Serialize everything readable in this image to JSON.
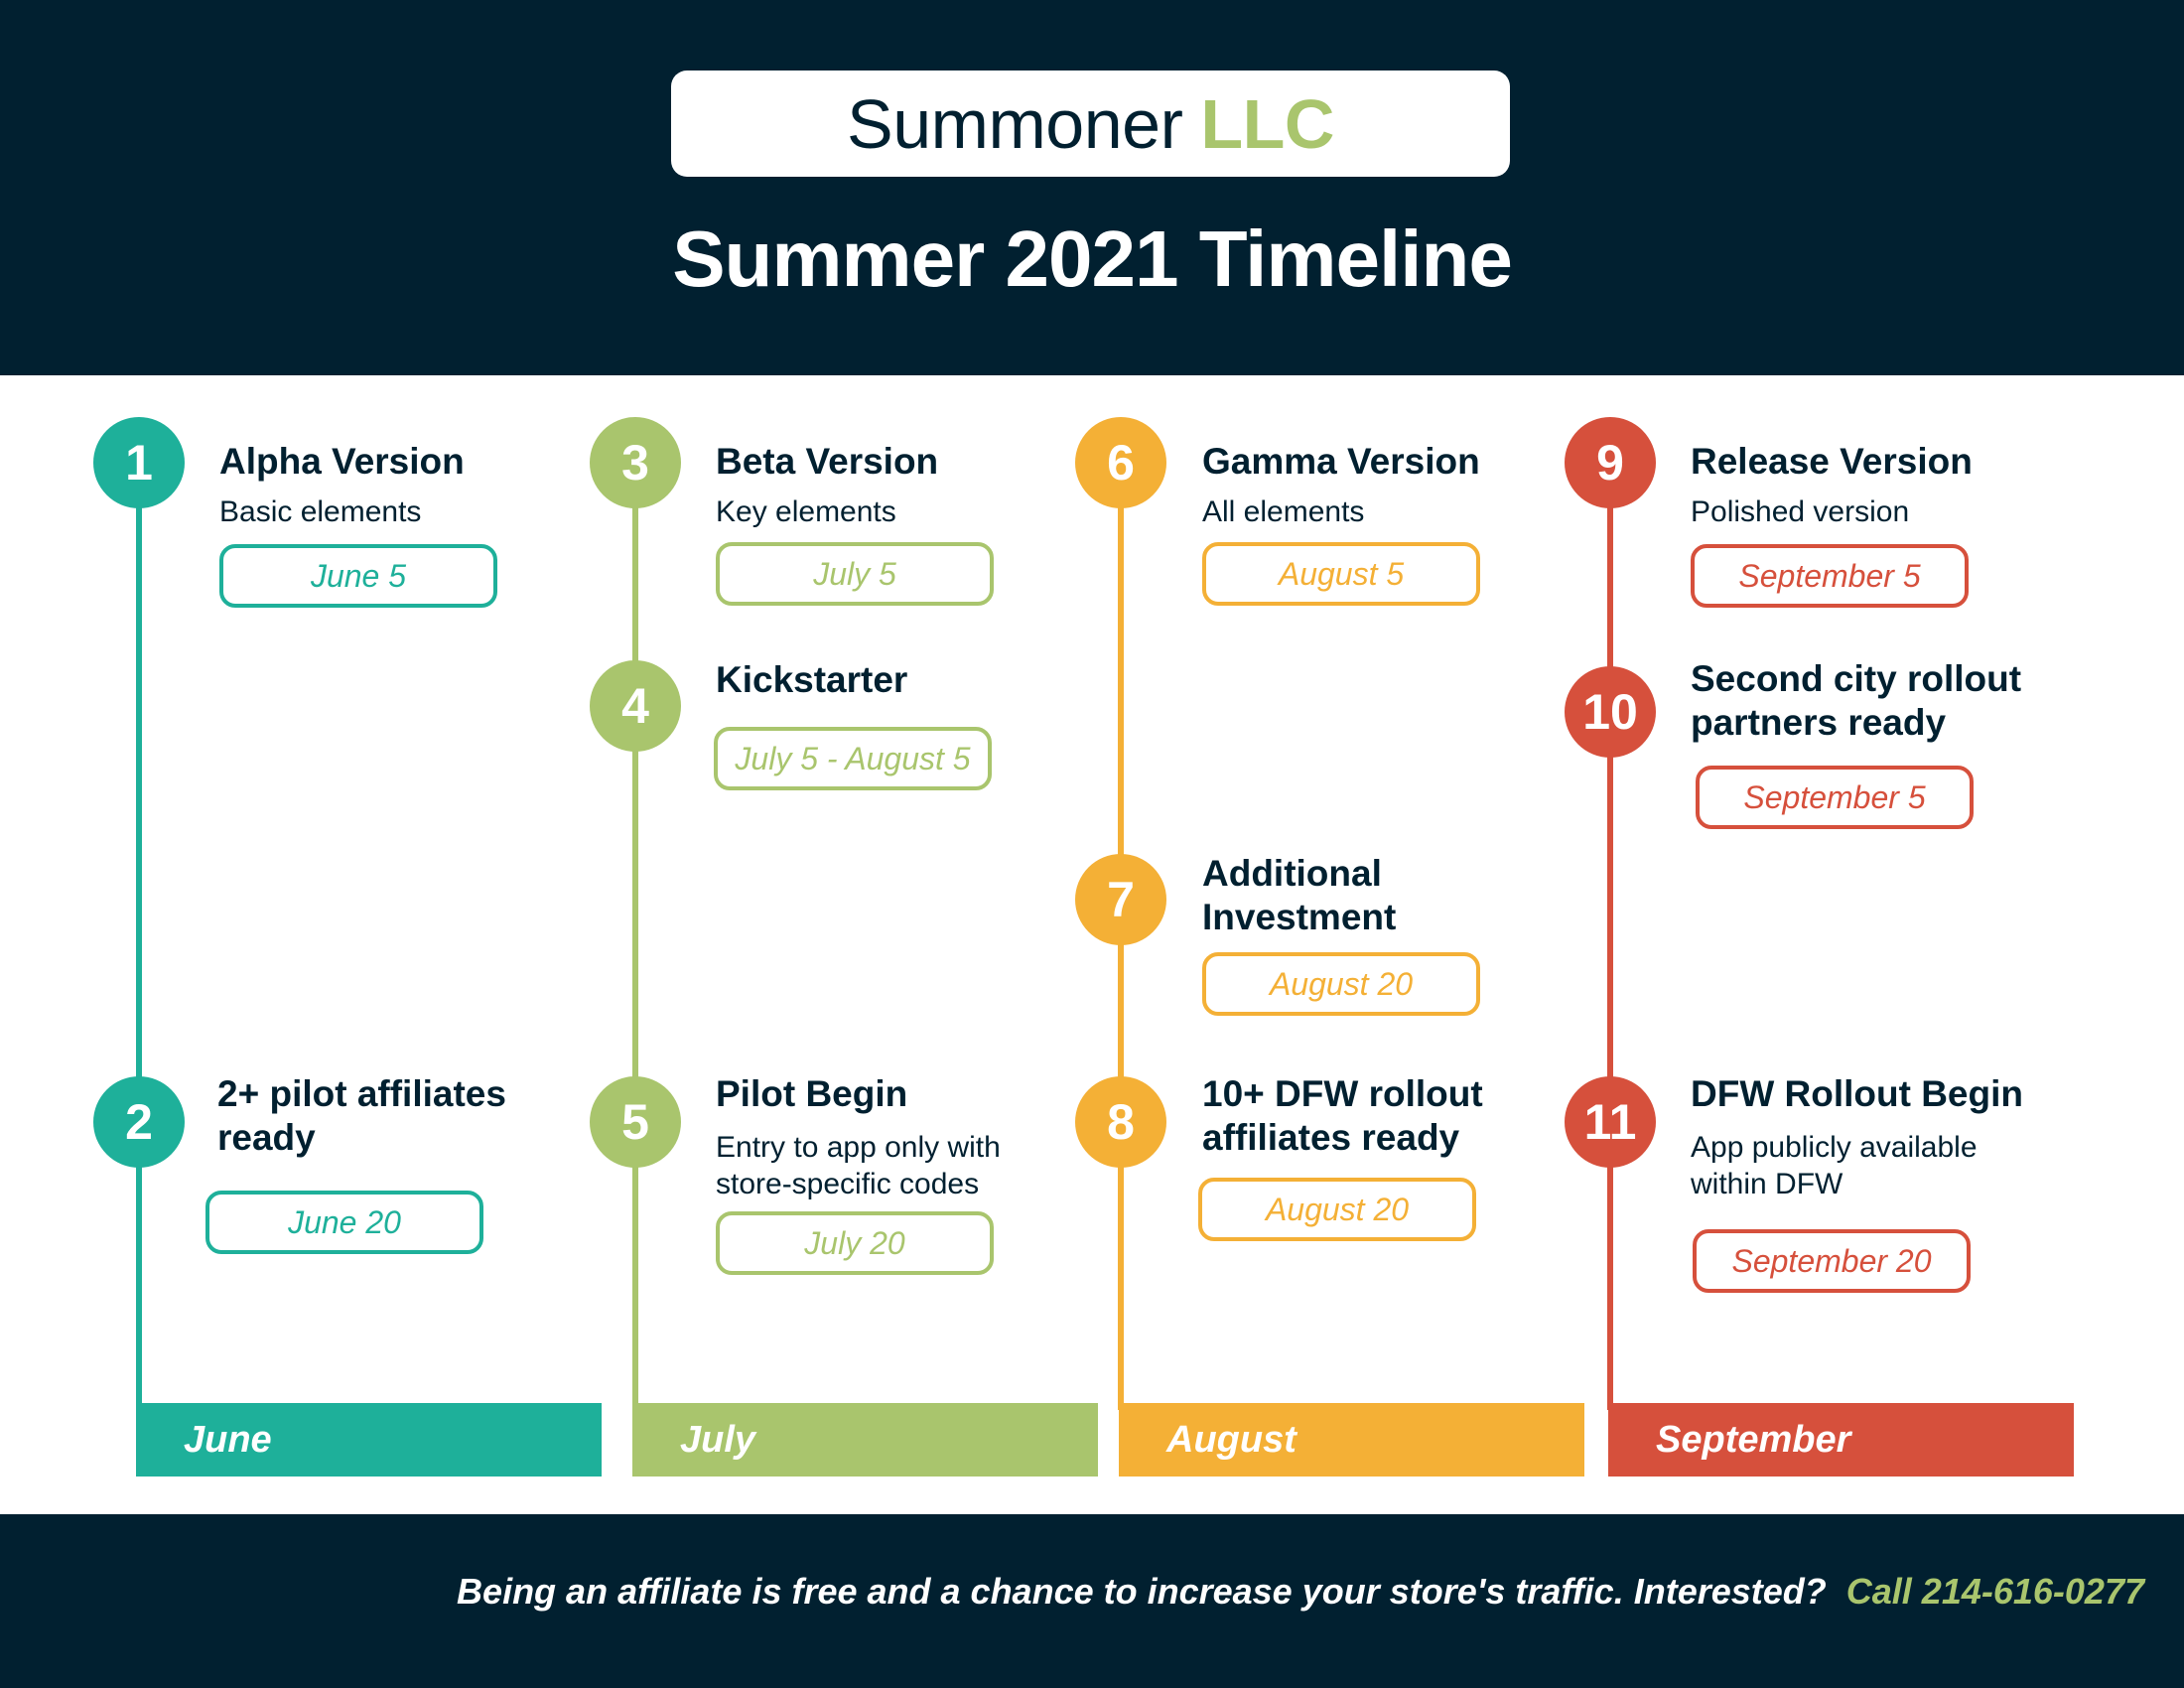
{
  "header": {
    "logo_name": "Summoner",
    "logo_accent": "LLC",
    "title": "Summer 2021 Timeline"
  },
  "colors": {
    "navy": "#012030",
    "june": "#1eb09a",
    "july": "#a9c56d",
    "august": "#f4b036",
    "september": "#d6503c"
  },
  "months": [
    "June",
    "July",
    "August",
    "September"
  ],
  "milestones": [
    {
      "num": "1",
      "title": "Alpha Version",
      "desc": "Basic elements",
      "date": "June 5"
    },
    {
      "num": "2",
      "title": "2+ pilot affiliates ready",
      "date": "June 20"
    },
    {
      "num": "3",
      "title": "Beta Version",
      "desc": "Key elements",
      "date": "July 5"
    },
    {
      "num": "4",
      "title": "Kickstarter",
      "date": "July 5 - August 5"
    },
    {
      "num": "5",
      "title": "Pilot Begin",
      "desc": "Entry to app only with store-specific codes",
      "date": "July 20"
    },
    {
      "num": "6",
      "title": "Gamma Version",
      "desc": "All elements",
      "date": "August 5"
    },
    {
      "num": "7",
      "title": "Additional Investment",
      "date": "August 20"
    },
    {
      "num": "8",
      "title": "10+ DFW rollout affiliates ready",
      "date": "August 20"
    },
    {
      "num": "9",
      "title": "Release Version",
      "desc": "Polished version",
      "date": "September 5"
    },
    {
      "num": "10",
      "title": "Second city rollout partners ready",
      "date": "September 5"
    },
    {
      "num": "11",
      "title": "DFW Rollout Begin",
      "desc": "App publicly available within DFW",
      "date": "September 20"
    }
  ],
  "footer": {
    "text": "Being an affiliate is free and a chance to increase your store's traffic. Interested?",
    "cta": "Call 214-616-0277"
  }
}
